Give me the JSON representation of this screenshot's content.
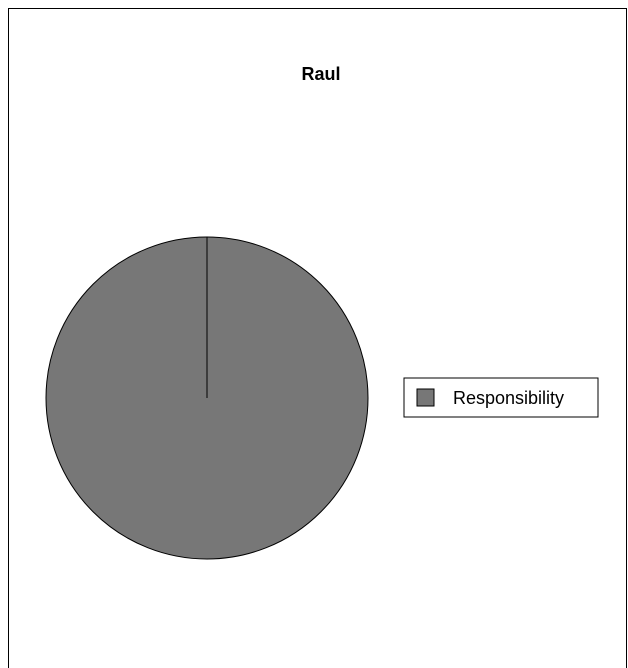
{
  "chart_data": {
    "type": "pie",
    "title": "Raul",
    "categories": [
      "Responsibility"
    ],
    "values": [
      100
    ],
    "colors": [
      "#777777"
    ],
    "legend": {
      "placement": "right",
      "entries": [
        "Responsibility"
      ]
    }
  }
}
